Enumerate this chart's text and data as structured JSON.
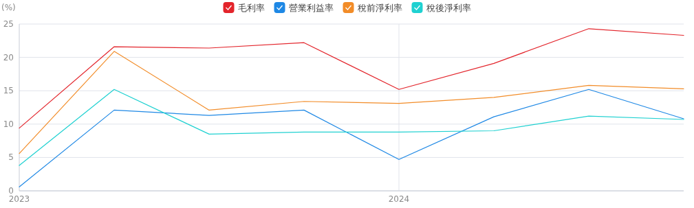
{
  "chart_data": {
    "type": "line",
    "ylabel": "(%)",
    "categories": [
      "2023",
      null,
      null,
      null,
      "2024",
      null,
      null,
      null
    ],
    "series": [
      {
        "name": "毛利率",
        "color": "#e3242b",
        "values": [
          9.4,
          21.6,
          21.4,
          22.2,
          15.2,
          19.1,
          24.3,
          23.3
        ]
      },
      {
        "name": "營業利益率",
        "color": "#1e88e5",
        "values": [
          0.6,
          12.1,
          11.3,
          12.1,
          4.7,
          11.1,
          15.2,
          10.8
        ]
      },
      {
        "name": "稅前淨利率",
        "color": "#f28c28",
        "values": [
          5.6,
          20.9,
          12.1,
          13.4,
          13.1,
          14.0,
          15.8,
          15.3
        ]
      },
      {
        "name": "稅後淨利率",
        "color": "#1fd1d1",
        "values": [
          3.8,
          15.2,
          8.5,
          8.8,
          8.8,
          9.0,
          11.2,
          10.7
        ]
      }
    ],
    "ylim": [
      0,
      25
    ],
    "yticks": [
      0,
      5,
      10,
      15,
      20,
      25
    ],
    "grid": true,
    "legend": "top",
    "marker": "none",
    "line_style": "solid"
  }
}
